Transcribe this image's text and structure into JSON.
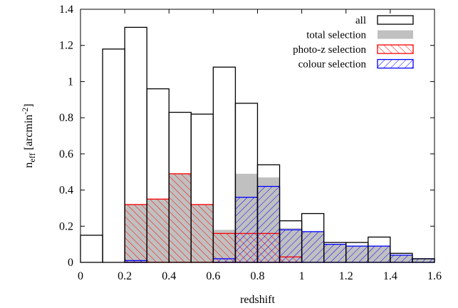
{
  "chart_data": {
    "type": "bar",
    "subtype": "histogram",
    "title": "",
    "xlabel": "redshift",
    "ylabel_main": "n",
    "ylabel_sub": "eff",
    "ylabel_unit": " [arcmin",
    "ylabel_exp": "-2",
    "ylabel_close": "]",
    "xlim": [
      0,
      1.6
    ],
    "ylim": [
      0,
      1.4
    ],
    "xticks": [
      "0",
      "0.2",
      "0.4",
      "0.6",
      "0.8",
      "1",
      "1.2",
      "1.4",
      "1.6"
    ],
    "yticks": [
      "0",
      "0.2",
      "0.4",
      "0.6",
      "0.8",
      "1",
      "1.2",
      "1.4"
    ],
    "grid": false,
    "legend_position": "top-right",
    "bin_edges": [
      0,
      0.1,
      0.2,
      0.3,
      0.4,
      0.5,
      0.6,
      0.7,
      0.8,
      0.9,
      1.0,
      1.1,
      1.2,
      1.3,
      1.4,
      1.5,
      1.6
    ],
    "series": [
      {
        "name": "all",
        "style": "outline",
        "color": "#000000",
        "values": [
          0.15,
          1.18,
          1.3,
          0.96,
          0.83,
          0.82,
          1.08,
          0.88,
          0.54,
          0.23,
          0.27,
          0.11,
          0.11,
          0.14,
          0.05,
          0.02
        ]
      },
      {
        "name": "total selection",
        "style": "solid",
        "color": "#c0c0c0",
        "values": [
          0,
          0,
          0.32,
          0.35,
          0.49,
          0.32,
          0.18,
          0.49,
          0.47,
          0.19,
          0.17,
          0.1,
          0.09,
          0.09,
          0.04,
          0.02
        ]
      },
      {
        "name": "photo-z selection",
        "style": "hatch-back",
        "color": "#ff0000",
        "values": [
          0,
          0,
          0.32,
          0.35,
          0.49,
          0.32,
          0.16,
          0.16,
          0.16,
          0.03,
          0,
          0,
          0,
          0,
          0,
          0
        ]
      },
      {
        "name": "colour selection",
        "style": "hatch-forward",
        "color": "#0000ff",
        "values": [
          0,
          0,
          0.01,
          0,
          0,
          0,
          0.02,
          0.36,
          0.42,
          0.18,
          0.17,
          0.1,
          0.09,
          0.09,
          0.04,
          0.02
        ]
      }
    ]
  }
}
